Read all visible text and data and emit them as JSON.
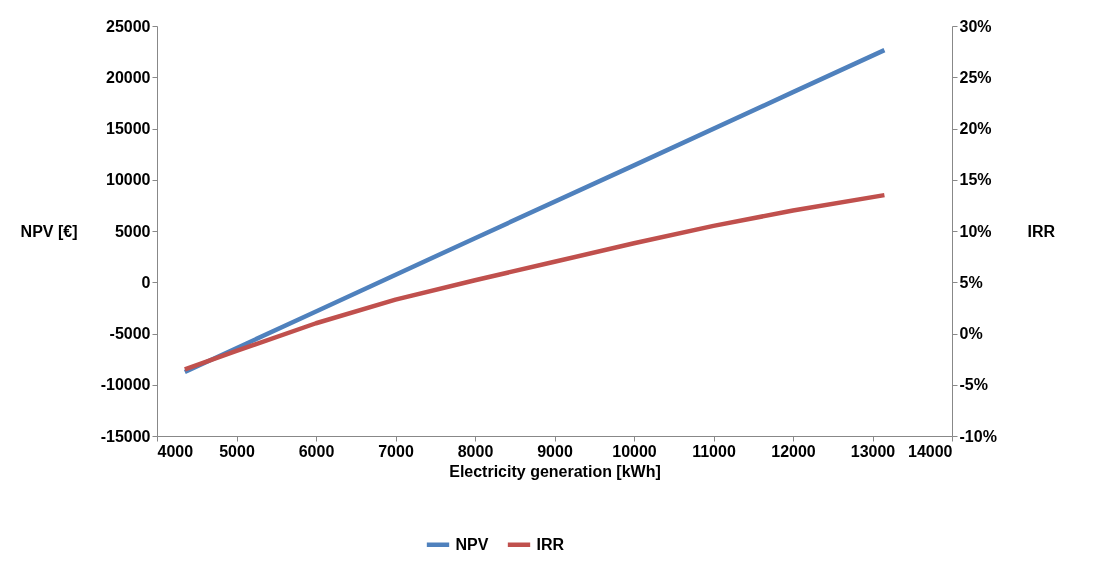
{
  "chart_data": {
    "type": "line",
    "xlabel": "Electricity generation [kWh]",
    "ylabel": "NPV [€]",
    "y2label": "IRR",
    "x": [
      4350,
      6000,
      8000,
      10000,
      12000,
      13150
    ],
    "series": [
      {
        "name": "NPV",
        "color": "#4f81bd",
        "values": [
          -8750,
          -2850,
          4300,
          11400,
          18550,
          22650
        ]
      },
      {
        "name": "IRR",
        "color": "#c0504d",
        "axis": "y2",
        "x": [
          4350,
          5000,
          6000,
          7000,
          8000,
          9000,
          10000,
          11000,
          12000,
          13150
        ],
        "values": [
          -3.5,
          -1.7,
          1.0,
          3.3,
          5.2,
          7.0,
          8.8,
          10.5,
          12.0,
          13.5
        ]
      }
    ],
    "xlim": [
      4000,
      14000
    ],
    "xticks": [
      4000,
      5000,
      6000,
      7000,
      8000,
      9000,
      10000,
      11000,
      12000,
      13000,
      14000
    ],
    "ylim": [
      -15000,
      25000
    ],
    "yticks": [
      -15000,
      -10000,
      -5000,
      0,
      5000,
      10000,
      15000,
      20000,
      25000
    ],
    "y2lim": [
      -10,
      30
    ],
    "y2ticks": [
      {
        "value": -10,
        "label": "-10%"
      },
      {
        "value": -5,
        "label": "-5%"
      },
      {
        "value": 0,
        "label": "0%"
      },
      {
        "value": 5,
        "label": "5%"
      },
      {
        "value": 10,
        "label": "10%"
      },
      {
        "value": 15,
        "label": "15%"
      },
      {
        "value": 20,
        "label": "20%"
      },
      {
        "value": 25,
        "label": "25%"
      },
      {
        "value": 30,
        "label": "30%"
      }
    ],
    "grid": false,
    "legend": "bottom",
    "marker": "none",
    "line_style": "solid"
  }
}
